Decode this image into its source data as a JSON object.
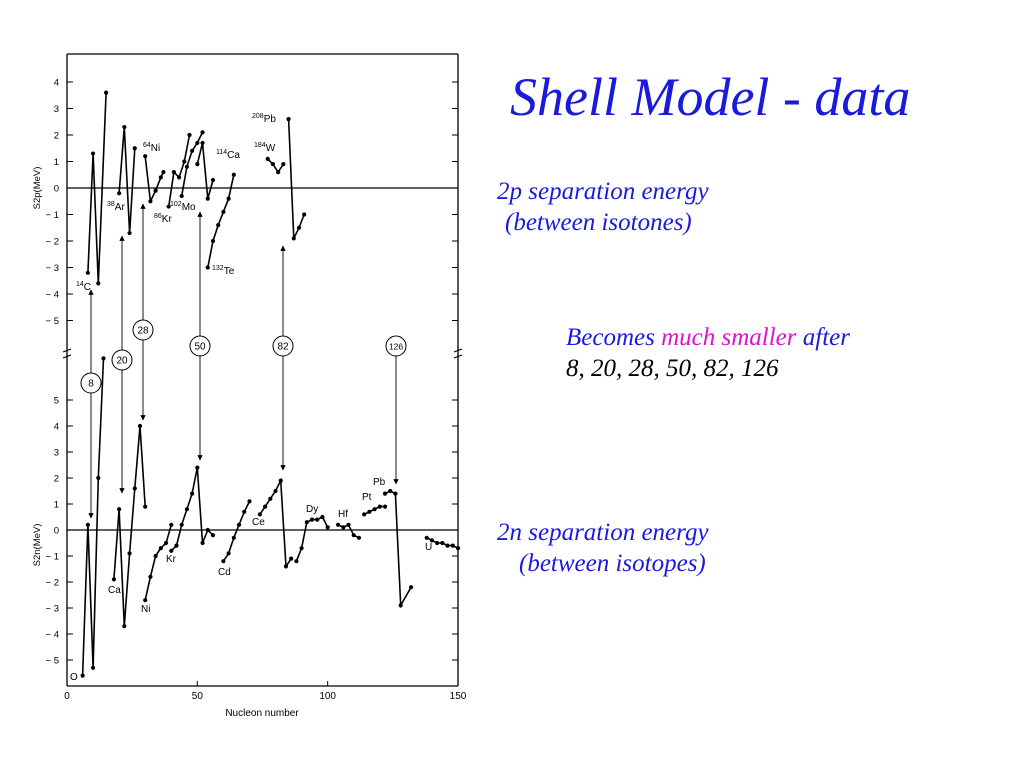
{
  "slide": {
    "title": "Shell Model - data",
    "p_label_line1": "2p separation energy",
    "p_label_line2": "(between isotones)",
    "note_line1_a": "Becomes",
    "note_line1_b": "much smaller",
    "note_line1_c": "after",
    "note_line2": "8, 20, 28, 50, 82, 126",
    "n_label_line1": "2n separation energy",
    "n_label_line2": "(between isotopes)",
    "colors": {
      "title": "#1a1adc",
      "emphasis": "#e010d0",
      "text": "#000000"
    }
  },
  "chart_data": [
    {
      "type": "line",
      "panel": "top",
      "ylabel": "S2p(MeV)",
      "ylim": [
        -5.5,
        4.5
      ],
      "xlim": [
        0,
        150
      ],
      "yticks": [
        "4",
        "3",
        "2",
        "1",
        "0",
        "− 1",
        "− 2",
        "− 3",
        "− 4",
        "− 5"
      ],
      "ytick_values": [
        4,
        3,
        2,
        1,
        0,
        -1,
        -2,
        -3,
        -4,
        -5
      ],
      "series": [
        {
          "label": "14C",
          "points": [
            [
              8,
              -3.2
            ],
            [
              10,
              1.3
            ],
            [
              12,
              -3.6
            ],
            [
              15,
              3.6
            ]
          ]
        },
        {
          "label": "38Ar",
          "points": [
            [
              20,
              -0.2
            ],
            [
              22,
              2.3
            ],
            [
              24,
              -1.7
            ],
            [
              26,
              1.5
            ]
          ]
        },
        {
          "label": "64Ni",
          "points": [
            [
              30,
              1.2
            ],
            [
              32,
              -0.5
            ],
            [
              34,
              -0.1
            ],
            [
              36,
              0.4
            ],
            [
              37,
              0.6
            ]
          ]
        },
        {
          "label": "86Kr",
          "points": [
            [
              39,
              -0.7
            ],
            [
              41,
              0.6
            ],
            [
              43,
              0.4
            ],
            [
              45,
              1.0
            ],
            [
              47,
              2.0
            ]
          ]
        },
        {
          "label": "102Mo",
          "points": [
            [
              44,
              -0.3
            ],
            [
              46,
              0.8
            ],
            [
              48,
              1.4
            ],
            [
              50,
              1.7
            ],
            [
              52,
              2.1
            ]
          ]
        },
        {
          "label": "114Ca",
          "points": [
            [
              50,
              0.9
            ],
            [
              52,
              1.7
            ],
            [
              54,
              -0.4
            ],
            [
              56,
              0.3
            ]
          ]
        },
        {
          "label": "132Te",
          "points": [
            [
              54,
              -3.0
            ],
            [
              56,
              -2.0
            ],
            [
              58,
              -1.4
            ],
            [
              60,
              -0.9
            ],
            [
              62,
              -0.4
            ],
            [
              64,
              0.5
            ]
          ]
        },
        {
          "label": "184W",
          "points": [
            [
              77,
              1.1
            ],
            [
              79,
              0.9
            ],
            [
              81,
              0.6
            ],
            [
              83,
              0.9
            ]
          ]
        },
        {
          "label": "208Pb",
          "points": [
            [
              85,
              2.6
            ],
            [
              87,
              -1.9
            ],
            [
              89,
              -1.5
            ],
            [
              91,
              -1.0
            ]
          ]
        }
      ],
      "series_labels": [
        "14C",
        "38Ar",
        "64Ni",
        "86Kr",
        "102Mo",
        "114Ca",
        "132Te",
        "184W",
        "208Pb"
      ]
    },
    {
      "type": "line",
      "panel": "bottom",
      "xlabel": "Nucleon number",
      "ylabel": "S2n(MeV)",
      "ylim": [
        -6.0,
        6.0
      ],
      "xlim": [
        0,
        150
      ],
      "xticks": [
        "0",
        "50",
        "100",
        "150"
      ],
      "xtick_values": [
        0,
        50,
        100,
        150
      ],
      "yticks": [
        "5",
        "4",
        "3",
        "2",
        "1",
        "0",
        "− 1",
        "− 2",
        "− 3",
        "− 4",
        "− 5"
      ],
      "ytick_values": [
        5,
        4,
        3,
        2,
        1,
        0,
        -1,
        -2,
        -3,
        -4,
        -5
      ],
      "series": [
        {
          "label": "O",
          "points": [
            [
              6,
              -5.6
            ],
            [
              8,
              0.2
            ],
            [
              10,
              -5.3
            ],
            [
              12,
              2.0
            ],
            [
              14,
              6.6
            ]
          ]
        },
        {
          "label": "Ca",
          "points": [
            [
              18,
              -1.9
            ],
            [
              20,
              0.8
            ],
            [
              22,
              -3.7
            ],
            [
              24,
              -0.9
            ],
            [
              26,
              1.6
            ],
            [
              28,
              4.0
            ],
            [
              30,
              0.9
            ]
          ]
        },
        {
          "label": "Ni",
          "points": [
            [
              30,
              -2.7
            ],
            [
              32,
              -1.8
            ],
            [
              34,
              -1.0
            ],
            [
              36,
              -0.7
            ],
            [
              38,
              -0.5
            ],
            [
              40,
              0.2
            ]
          ]
        },
        {
          "label": "Kr",
          "points": [
            [
              40,
              -0.8
            ],
            [
              42,
              -0.6
            ],
            [
              44,
              0.2
            ],
            [
              46,
              0.8
            ],
            [
              48,
              1.4
            ],
            [
              50,
              2.4
            ],
            [
              52,
              -0.5
            ],
            [
              54,
              0.0
            ],
            [
              56,
              -0.2
            ]
          ]
        },
        {
          "label": "Cd",
          "points": [
            [
              60,
              -1.2
            ],
            [
              62,
              -0.9
            ],
            [
              64,
              -0.3
            ],
            [
              66,
              0.2
            ],
            [
              68,
              0.7
            ],
            [
              70,
              1.1
            ]
          ]
        },
        {
          "label": "Ce",
          "points": [
            [
              74,
              0.6
            ],
            [
              76,
              0.9
            ],
            [
              78,
              1.2
            ],
            [
              80,
              1.5
            ],
            [
              82,
              1.9
            ],
            [
              84,
              -1.4
            ],
            [
              86,
              -1.1
            ]
          ]
        },
        {
          "label": "Dy",
          "points": [
            [
              88,
              -1.2
            ],
            [
              90,
              -0.7
            ],
            [
              92,
              0.3
            ],
            [
              94,
              0.4
            ],
            [
              96,
              0.4
            ],
            [
              98,
              0.5
            ],
            [
              100,
              0.1
            ]
          ]
        },
        {
          "label": "Hf",
          "points": [
            [
              104,
              0.2
            ],
            [
              106,
              0.1
            ],
            [
              108,
              0.2
            ],
            [
              110,
              -0.2
            ],
            [
              112,
              -0.3
            ]
          ]
        },
        {
          "label": "Pt",
          "points": [
            [
              114,
              0.6
            ],
            [
              116,
              0.7
            ],
            [
              118,
              0.8
            ],
            [
              120,
              0.9
            ],
            [
              122,
              0.9
            ]
          ]
        },
        {
          "label": "Pb",
          "points": [
            [
              122,
              1.4
            ],
            [
              124,
              1.5
            ],
            [
              126,
              1.4
            ],
            [
              128,
              -2.9
            ],
            [
              132,
              -2.2
            ]
          ]
        },
        {
          "label": "U",
          "points": [
            [
              138,
              -0.3
            ],
            [
              140,
              -0.4
            ],
            [
              142,
              -0.5
            ],
            [
              144,
              -0.5
            ],
            [
              146,
              -0.6
            ],
            [
              148,
              -0.6
            ],
            [
              150,
              -0.7
            ]
          ]
        }
      ],
      "series_labels": [
        "O",
        "Ca",
        "Ni",
        "Kr",
        "Cd",
        "Ce",
        "Dy",
        "Hf",
        "Pt",
        "Pb",
        "U"
      ]
    }
  ],
  "magic_numbers": [
    "8",
    "20",
    "28",
    "50",
    "82",
    "126"
  ]
}
